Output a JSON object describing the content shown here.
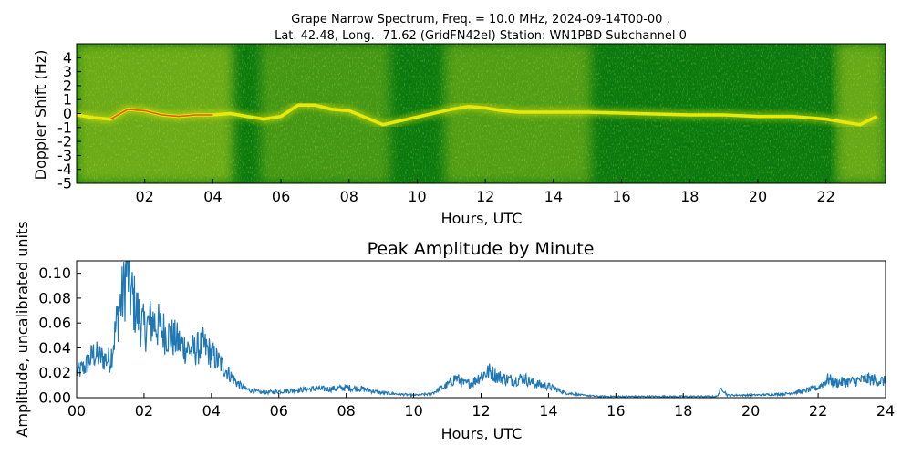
{
  "chart_data": [
    {
      "type": "heatmap",
      "title_line1": "Grape Narrow Spectrum, Freq. = 10.0 MHz, 2024-09-14T00-00 ,",
      "title_line2": "Lat.  42.48, Long. -71.62 (GridFN42el) Station: WN1PBD Subchannel 0",
      "xlabel": "Hours, UTC",
      "ylabel": "Doppler Shift (Hz)",
      "xlim": [
        0,
        23.75
      ],
      "ylim": [
        -5,
        5
      ],
      "x_ticks": [
        2,
        4,
        6,
        8,
        10,
        12,
        14,
        16,
        18,
        20,
        22
      ],
      "x_tick_labels": [
        "02",
        "04",
        "06",
        "08",
        "10",
        "12",
        "14",
        "16",
        "18",
        "20",
        "22"
      ],
      "y_ticks": [
        4,
        3,
        2,
        1,
        0,
        -1,
        -2,
        -3,
        -4,
        -5
      ],
      "y_tick_labels": [
        "4",
        "3",
        "2",
        "1",
        "0",
        "-1",
        "-2",
        "-3",
        "-4",
        "-5"
      ],
      "colors": {
        "background": "#0a7a10",
        "mid": "#5aa81c",
        "high": "#e8e80a",
        "peak": "#e84010"
      },
      "trace": {
        "x": [
          0,
          0.5,
          1,
          1.5,
          2,
          2.5,
          3,
          3.5,
          4,
          4.5,
          5,
          5.5,
          6,
          6.5,
          7,
          7.5,
          8,
          8.5,
          9,
          11,
          11.5,
          12,
          12.5,
          13,
          13.5,
          14,
          14.5,
          15,
          18,
          19,
          20,
          21,
          22,
          22.5,
          23,
          23.5
        ],
        "y": [
          -0.1,
          -0.3,
          -0.4,
          0.3,
          0.2,
          -0.1,
          -0.2,
          -0.1,
          -0.1,
          0,
          -0.2,
          -0.4,
          -0.2,
          0.6,
          0.6,
          0.3,
          0.2,
          -0.3,
          -0.8,
          0.3,
          0.5,
          0.4,
          0.2,
          0.1,
          0.1,
          0.1,
          0.1,
          0.1,
          -0.1,
          -0.1,
          -0.2,
          -0.2,
          -0.4,
          -0.6,
          -0.8,
          -0.2
        ]
      }
    },
    {
      "type": "line",
      "title": "Peak Amplitude by Minute",
      "xlabel": "Hours, UTC",
      "ylabel": "Amplitude, uncalibrated units",
      "xlim": [
        0,
        24
      ],
      "ylim": [
        0,
        0.11
      ],
      "x_ticks": [
        0,
        2,
        4,
        6,
        8,
        10,
        12,
        14,
        16,
        18,
        20,
        22,
        24
      ],
      "x_tick_labels": [
        "00",
        "02",
        "04",
        "06",
        "08",
        "10",
        "12",
        "14",
        "16",
        "18",
        "20",
        "22",
        "24"
      ],
      "y_ticks": [
        0,
        0.02,
        0.04,
        0.06,
        0.08,
        0.1
      ],
      "y_tick_labels": [
        "0.00",
        "0.02",
        "0.04",
        "0.06",
        "0.08",
        "0.10"
      ],
      "color": "#1f77b4",
      "x": [
        0,
        0.25,
        0.5,
        0.75,
        1,
        1.1,
        1.25,
        1.4,
        1.5,
        1.6,
        1.75,
        2,
        2.25,
        2.5,
        2.75,
        3,
        3.25,
        3.5,
        3.75,
        4,
        4.25,
        4.5,
        4.75,
        5,
        5.5,
        6,
        6.5,
        7,
        7.5,
        8,
        8.5,
        9,
        9.5,
        10,
        10.5,
        11,
        11.25,
        11.5,
        11.75,
        12,
        12.25,
        12.5,
        12.75,
        13,
        13.25,
        13.5,
        14,
        14.5,
        15,
        15.5,
        16,
        16.5,
        17,
        18,
        19,
        19.15,
        19.3,
        20,
        21,
        21.5,
        22,
        22.3,
        22.5,
        23,
        23.5,
        24
      ],
      "y": [
        0.02,
        0.025,
        0.035,
        0.032,
        0.03,
        0.045,
        0.07,
        0.085,
        0.108,
        0.085,
        0.072,
        0.055,
        0.062,
        0.055,
        0.05,
        0.045,
        0.04,
        0.038,
        0.042,
        0.035,
        0.028,
        0.02,
        0.012,
        0.007,
        0.004,
        0.005,
        0.006,
        0.007,
        0.007,
        0.008,
        0.007,
        0.004,
        0.003,
        0.002,
        0.003,
        0.01,
        0.016,
        0.011,
        0.012,
        0.018,
        0.021,
        0.017,
        0.015,
        0.014,
        0.016,
        0.012,
        0.009,
        0.004,
        0.002,
        0.001,
        0.001,
        0.001,
        0.001,
        0.001,
        0.001,
        0.008,
        0.002,
        0.002,
        0.003,
        0.005,
        0.008,
        0.015,
        0.012,
        0.013,
        0.015,
        0.013
      ]
    }
  ]
}
